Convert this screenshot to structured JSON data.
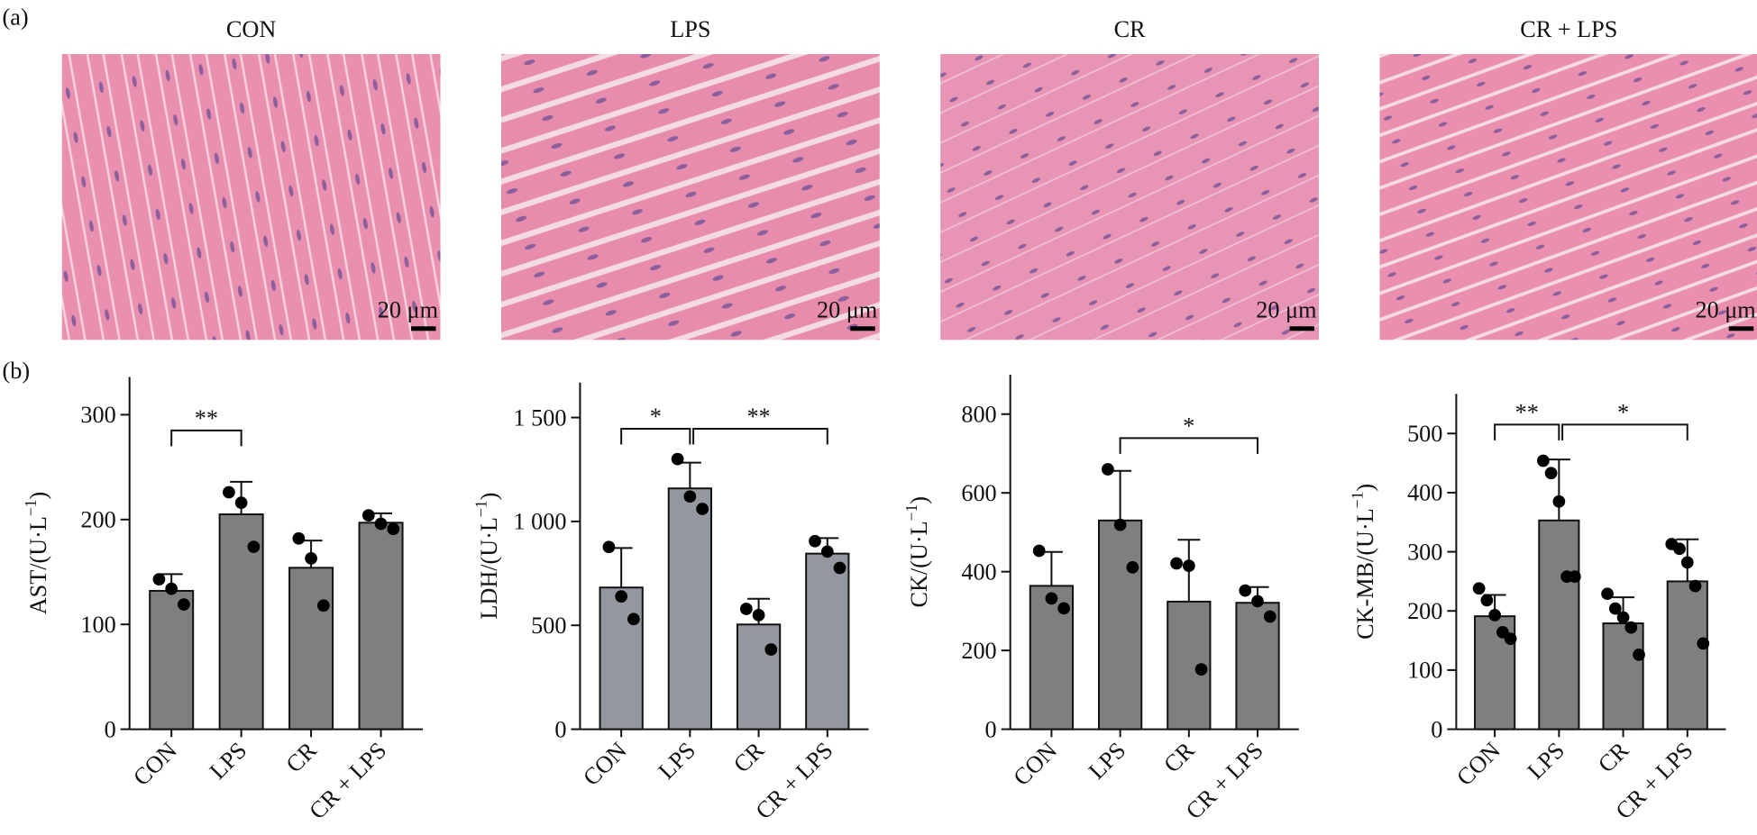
{
  "panel_labels": [
    "(a)",
    "(b)"
  ],
  "images": [
    {
      "title": "CON",
      "scale_bar": "20 μm"
    },
    {
      "title": "LPS",
      "scale_bar": "20 μm"
    },
    {
      "title": "CR",
      "scale_bar": "20 μm"
    },
    {
      "title": "CR + LPS",
      "scale_bar": "20 μm"
    }
  ],
  "chart_data": [
    {
      "type": "bar",
      "ylabel": [
        "AST/(U·L",
        "−1",
        ")"
      ],
      "categories": [
        "CON",
        "LPS",
        "CR",
        "CR + LPS"
      ],
      "values": [
        132,
        205,
        154,
        197
      ],
      "errors": [
        16,
        31,
        26,
        9
      ],
      "points": [
        [
          143,
          134,
          119
        ],
        [
          226,
          216,
          174
        ],
        [
          182,
          163,
          118
        ],
        [
          204,
          196,
          191
        ]
      ],
      "color": "#7f7f7f",
      "ylim": [
        0,
        336
      ],
      "yticks": [
        0,
        100,
        200,
        300
      ],
      "annotations": [
        {
          "text": "**",
          "between": [
            "CON",
            "LPS"
          ],
          "y": 285
        }
      ]
    },
    {
      "type": "bar",
      "ylabel": [
        "LDH/(U·L",
        "−1",
        ")"
      ],
      "categories": [
        "CON",
        "LPS",
        "CR",
        "CR + LPS"
      ],
      "values": [
        682,
        1159,
        504,
        845
      ],
      "errors": [
        190,
        124,
        124,
        75
      ],
      "points": [
        [
          877,
          639,
          530
        ],
        [
          1300,
          1120,
          1060
        ],
        [
          579,
          549,
          384
        ],
        [
          905,
          855,
          776
        ]
      ],
      "color": "#9398a0",
      "ylim": [
        0,
        1668
      ],
      "yticks": [
        0,
        500,
        {
          "value": 1000,
          "label": "1 000"
        },
        {
          "value": 1500,
          "label": "1 500"
        }
      ],
      "annotations": [
        {
          "text": "*",
          "between": [
            "CON",
            "LPS"
          ],
          "y": 1446
        },
        {
          "text": "**",
          "between": [
            "LPS",
            "CR + LPS"
          ],
          "y": 1446
        }
      ]
    },
    {
      "type": "bar",
      "ylabel": [
        "CK/(U·L",
        "−1",
        ")"
      ],
      "categories": [
        "CON",
        "LPS",
        "CR",
        "CR + LPS"
      ],
      "values": [
        364,
        530,
        324,
        321
      ],
      "errors": [
        86,
        126,
        157,
        40
      ],
      "points": [
        [
          453,
          332,
          307
        ],
        [
          660,
          519,
          411
        ],
        [
          421,
          415,
          152
        ],
        [
          352,
          325,
          286
        ]
      ],
      "color": "#7f7f7f",
      "ylim": [
        0,
        900
      ],
      "yticks": [
        0,
        200,
        400,
        600,
        800
      ],
      "annotations": [
        {
          "text": "*",
          "between": [
            "LPS",
            "CR + LPS"
          ],
          "y": 739
        }
      ]
    },
    {
      "type": "bar",
      "ylabel": [
        "CK-MB/(U·L",
        "−1",
        ")"
      ],
      "categories": [
        "CON",
        "LPS",
        "CR",
        "CR + LPS"
      ],
      "values": [
        191,
        353,
        179,
        250
      ],
      "errors": [
        36,
        103,
        44,
        71
      ],
      "points": [
        [
          238,
          218,
          193,
          164,
          153
        ],
        [
          454,
          433,
          385,
          258,
          258
        ],
        [
          229,
          204,
          189,
          172,
          126
        ],
        [
          313,
          305,
          282,
          242,
          145
        ]
      ],
      "color": "#7f7f7f",
      "ylim": [
        0,
        567
      ],
      "yticks": [
        0,
        100,
        200,
        300,
        400,
        500
      ],
      "annotations": [
        {
          "text": "**",
          "between": [
            "CON",
            "LPS"
          ],
          "y": 515
        },
        {
          "text": "*",
          "between": [
            "LPS",
            "CR + LPS"
          ],
          "y": 515
        }
      ]
    }
  ]
}
